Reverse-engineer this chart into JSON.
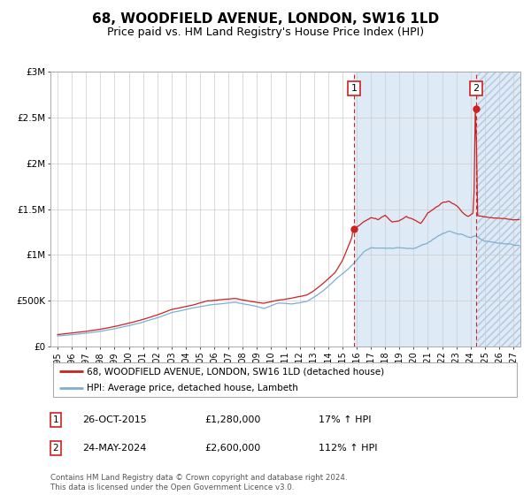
{
  "title": "68, WOODFIELD AVENUE, LONDON, SW16 1LD",
  "subtitle": "Price paid vs. HM Land Registry's House Price Index (HPI)",
  "hpi_label": "HPI: Average price, detached house, Lambeth",
  "property_label": "68, WOODFIELD AVENUE, LONDON, SW16 1LD (detached house)",
  "annotation1": {
    "num": "1",
    "date": "26-OCT-2015",
    "price": 1280000,
    "year": 2015.82,
    "pct": "17%",
    "direction": "↑"
  },
  "annotation2": {
    "num": "2",
    "date": "24-MAY-2024",
    "price": 2600000,
    "year": 2024.39,
    "pct": "112%",
    "direction": "↑"
  },
  "xmin": 1994.5,
  "xmax": 2027.5,
  "ymin": 0,
  "ymax": 3000000,
  "yticks": [
    0,
    500000,
    1000000,
    1500000,
    2000000,
    2500000,
    3000000
  ],
  "ytick_labels": [
    "£0",
    "£500K",
    "£1M",
    "£1.5M",
    "£2M",
    "£2.5M",
    "£3M"
  ],
  "xticks": [
    1995,
    1996,
    1997,
    1998,
    1999,
    2000,
    2001,
    2002,
    2003,
    2004,
    2005,
    2006,
    2007,
    2008,
    2009,
    2010,
    2011,
    2012,
    2013,
    2014,
    2015,
    2016,
    2017,
    2018,
    2019,
    2020,
    2021,
    2022,
    2023,
    2024,
    2025,
    2026,
    2027
  ],
  "hpi_color": "#7bafd4",
  "property_color": "#cc2222",
  "dashed_line1_color": "#cc2222",
  "dashed_line2_color": "#cc2222",
  "bg_color": "#deeaf5",
  "footer": "Contains HM Land Registry data © Crown copyright and database right 2024.\nThis data is licensed under the Open Government Licence v3.0.",
  "title_fontsize": 11,
  "subtitle_fontsize": 9,
  "axis_fontsize": 7.5,
  "legend_fontsize": 8
}
